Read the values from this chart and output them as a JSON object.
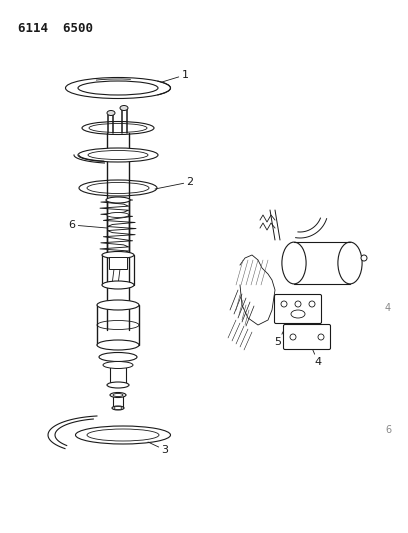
{
  "title": "6114  6500",
  "bg_color": "#ffffff",
  "line_color": "#1a1a1a",
  "figsize": [
    4.08,
    5.33
  ],
  "dpi": 100,
  "label_4_small": "4",
  "label_6_small": "6"
}
